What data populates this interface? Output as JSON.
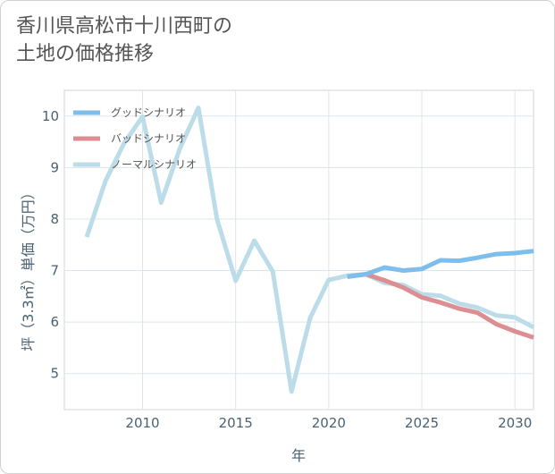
{
  "title": {
    "line1": "香川県高松市十川西町の",
    "line2": "土地の価格推移"
  },
  "chart_data": {
    "type": "line",
    "xlabel": "年",
    "ylabel": "坪（3.3㎡）単価（万円）",
    "xlim": [
      2005.8,
      2031
    ],
    "ylim": [
      4.3,
      10.5
    ],
    "x_ticks": [
      2010,
      2015,
      2020,
      2025,
      2030
    ],
    "y_ticks": [
      5,
      6,
      7,
      8,
      9,
      10
    ],
    "grid": true,
    "legend_position": "top-left",
    "series": [
      {
        "name": "グッドシナリオ",
        "color": "#7dbeec",
        "x": [
          2021,
          2022,
          2023,
          2024,
          2025,
          2026,
          2027,
          2028,
          2029,
          2030,
          2031
        ],
        "values": [
          6.88,
          6.93,
          7.06,
          7.0,
          7.03,
          7.2,
          7.19,
          7.25,
          7.32,
          7.34,
          7.38
        ]
      },
      {
        "name": "バッドシナリオ",
        "color": "#dc8e92",
        "x": [
          2021,
          2022,
          2023,
          2024,
          2025,
          2026,
          2027,
          2028,
          2029,
          2030,
          2031
        ],
        "values": [
          6.88,
          6.93,
          6.81,
          6.67,
          6.48,
          6.38,
          6.26,
          6.18,
          5.96,
          5.82,
          5.7
        ]
      },
      {
        "name": "ノーマルシナリオ",
        "color": "#bcdcea",
        "x": [
          2007,
          2008,
          2009,
          2010,
          2011,
          2012,
          2013,
          2014,
          2015,
          2016,
          2017,
          2018,
          2019,
          2020,
          2021,
          2022,
          2023,
          2024,
          2025,
          2026,
          2027,
          2028,
          2029,
          2030,
          2031
        ],
        "values": [
          7.65,
          8.73,
          9.47,
          9.99,
          8.32,
          9.37,
          10.16,
          8.0,
          6.8,
          7.58,
          6.98,
          4.65,
          6.08,
          6.82,
          6.9,
          6.93,
          6.76,
          6.72,
          6.54,
          6.51,
          6.36,
          6.28,
          6.13,
          6.09,
          5.9
        ]
      }
    ]
  }
}
